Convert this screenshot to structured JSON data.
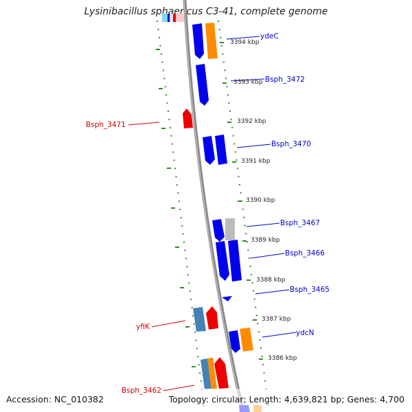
{
  "title": "Lysinibacillus sphaericus C3-41, complete genome",
  "footer": {
    "accession": "Accession: NC_010382",
    "topology": "Topology: circular; Length: 4,639,821 bp; Genes: 4,700"
  },
  "colors": {
    "backbone": "#8a8a8a",
    "tick": "#2e8b22",
    "forward_gene": "#0000ee",
    "hypothetical_gene": "#ee0000",
    "orange_gene": "#ff8c00",
    "steelblue_gene": "#4682b4",
    "gray_gene": "#bbbbbb",
    "cyan_gene": "#00bcd4",
    "label_blue": "#0000cc",
    "label_red": "#cc0000"
  },
  "kbp_ticks": [
    "3394 kbp",
    "3393 kbp",
    "3392 kbp",
    "3391 kbp",
    "3390 kbp",
    "3389 kbp",
    "3388 kbp",
    "3387 kbp",
    "3386 kbp"
  ],
  "gene_labels": [
    {
      "text": "ydeC",
      "color": "label_blue"
    },
    {
      "text": "Bsph_3472",
      "color": "label_blue"
    },
    {
      "text": "Bsph_3471",
      "color": "label_red"
    },
    {
      "text": "Bsph_3470",
      "color": "label_blue"
    },
    {
      "text": "Bsph_3467",
      "color": "label_blue"
    },
    {
      "text": "Bsph_3466",
      "color": "label_blue"
    },
    {
      "text": "Bsph_3465",
      "color": "label_blue"
    },
    {
      "text": "yfiK",
      "color": "label_red"
    },
    {
      "text": "ydcN",
      "color": "label_blue"
    },
    {
      "text": "Bsph_3462",
      "color": "label_red"
    }
  ]
}
